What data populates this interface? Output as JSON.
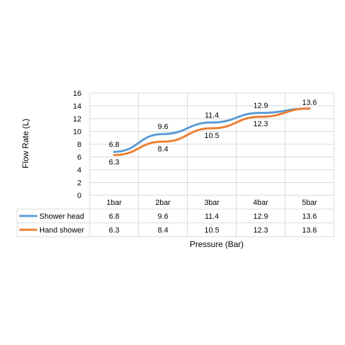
{
  "chart_data": {
    "type": "line",
    "categories": [
      "1bar",
      "2bar",
      "3bar",
      "4bar",
      "5bar"
    ],
    "series": [
      {
        "name": "Shower head",
        "values": [
          6.8,
          9.6,
          11.4,
          12.9,
          13.6
        ],
        "color": "#5B9BD5"
      },
      {
        "name": "Hand shower",
        "values": [
          6.3,
          8.4,
          10.5,
          12.3,
          13.6
        ],
        "color": "#ED7D31"
      }
    ],
    "xlabel": "Pressure (Bar)",
    "ylabel": "Flow Rate (L)",
    "ylim": [
      0,
      16
    ],
    "yticks": [
      0,
      2,
      4,
      6,
      8,
      10,
      12,
      14,
      16
    ],
    "grid": true,
    "legend": "data-table",
    "data_table": true
  }
}
